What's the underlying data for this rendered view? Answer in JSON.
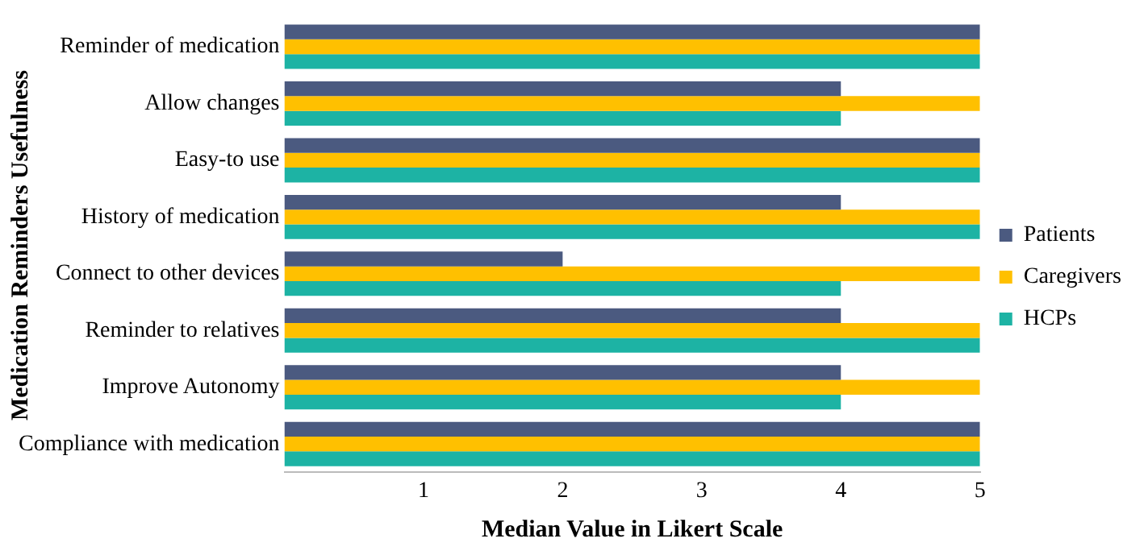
{
  "chart_data": {
    "type": "bar",
    "orientation": "horizontal",
    "xlabel": "Median Value in Likert Scale",
    "ylabel": "Medication Reminders Usefulness",
    "categories": [
      "Reminder of medication",
      "Allow changes",
      "Easy-to use",
      "History of medication",
      "Connect to other devices",
      "Reminder to relatives",
      "Improve Autonomy",
      "Compliance with medication"
    ],
    "series": [
      {
        "name": "Patients",
        "color": "#4b5a80",
        "values": [
          5,
          4,
          5,
          4,
          2,
          4,
          4,
          5
        ]
      },
      {
        "name": "Caregivers",
        "color": "#ffc000",
        "values": [
          5,
          5,
          5,
          5,
          5,
          5,
          5,
          5
        ]
      },
      {
        "name": "HCPs",
        "color": "#1db3a4",
        "values": [
          5,
          4,
          5,
          5,
          4,
          5,
          4,
          5
        ]
      }
    ],
    "xlim": [
      0,
      5
    ],
    "xticks": [
      1,
      2,
      3,
      4,
      5
    ],
    "grid": false,
    "legend": "right"
  }
}
